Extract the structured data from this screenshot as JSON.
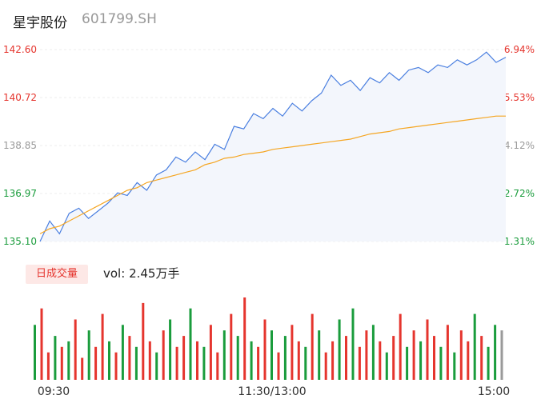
{
  "header": {
    "name": "星宇股份",
    "code": "601799.SH"
  },
  "volume_button_label": "日成交量",
  "volume_readout": {
    "prefix": "vol:",
    "value": "2.45万手"
  },
  "colors": {
    "up": "#e5352e",
    "down": "#1a9c3c",
    "neutral": "#9a9a9a",
    "price_line": "#4a7fe0",
    "avg_line": "#f5a623",
    "area_fill": "#f3f6fc",
    "button_bg": "#fde8e6"
  },
  "chart_data": [
    {
      "type": "line",
      "y_left_ticks": [
        "142.60",
        "140.72",
        "138.85",
        "136.97",
        "135.10"
      ],
      "y_right_ticks": [
        "6.94%",
        "5.53%",
        "4.12%",
        "2.72%",
        "1.31%"
      ],
      "ylim": [
        135.1,
        142.6
      ],
      "series": [
        {
          "key": "price",
          "values": [
            135.1,
            135.9,
            135.4,
            136.2,
            136.4,
            136.0,
            136.3,
            136.6,
            137.0,
            136.9,
            137.4,
            137.1,
            137.7,
            137.9,
            138.4,
            138.2,
            138.6,
            138.3,
            138.9,
            138.7,
            139.6,
            139.5,
            140.1,
            139.9,
            140.3,
            140.0,
            140.5,
            140.2,
            140.6,
            140.9,
            141.6,
            141.2,
            141.4,
            141.0,
            141.5,
            141.3,
            141.7,
            141.4,
            141.8,
            141.9,
            141.7,
            142.0,
            141.9,
            142.2,
            142.0,
            142.2,
            142.5,
            142.1,
            142.3
          ]
        },
        {
          "key": "avg",
          "values": [
            135.4,
            135.6,
            135.7,
            135.9,
            136.1,
            136.3,
            136.5,
            136.7,
            136.9,
            137.1,
            137.2,
            137.4,
            137.5,
            137.6,
            137.7,
            137.8,
            137.9,
            138.1,
            138.2,
            138.35,
            138.4,
            138.5,
            138.55,
            138.6,
            138.7,
            138.75,
            138.8,
            138.85,
            138.9,
            138.95,
            139.0,
            139.05,
            139.1,
            139.2,
            139.3,
            139.35,
            139.4,
            139.5,
            139.55,
            139.6,
            139.65,
            139.7,
            139.75,
            139.8,
            139.85,
            139.9,
            139.95,
            140.0,
            140.0
          ]
        }
      ]
    },
    {
      "type": "bar",
      "x_labels": [
        "09:30",
        "11:30/13:00",
        "15:00"
      ],
      "values": [
        10,
        13,
        5,
        8,
        6,
        7,
        11,
        4,
        9,
        6,
        12,
        7,
        5,
        10,
        8,
        6,
        14,
        7,
        5,
        9,
        11,
        6,
        8,
        13,
        7,
        6,
        10,
        5,
        9,
        12,
        8,
        15,
        7,
        6,
        11,
        9,
        5,
        8,
        10,
        7,
        6,
        12,
        9,
        5,
        7,
        11,
        8,
        13,
        6,
        9,
        10,
        7,
        5,
        8,
        12,
        6,
        9,
        7,
        11,
        8,
        6,
        10,
        5,
        9,
        7,
        12,
        8,
        6,
        10,
        9
      ],
      "directions": [
        "down",
        "up",
        "up",
        "down",
        "up",
        "down",
        "up",
        "up",
        "down",
        "up",
        "up",
        "down",
        "up",
        "down",
        "up",
        "down",
        "up",
        "up",
        "down",
        "up",
        "down",
        "up",
        "up",
        "down",
        "up",
        "down",
        "up",
        "up",
        "down",
        "up",
        "down",
        "up",
        "down",
        "up",
        "up",
        "down",
        "up",
        "down",
        "up",
        "up",
        "down",
        "up",
        "down",
        "up",
        "up",
        "down",
        "up",
        "down",
        "up",
        "up",
        "down",
        "up",
        "down",
        "up",
        "up",
        "down",
        "up",
        "down",
        "up",
        "up",
        "down",
        "up",
        "down",
        "up",
        "up",
        "down",
        "up",
        "down",
        "down",
        "neutral"
      ]
    }
  ]
}
